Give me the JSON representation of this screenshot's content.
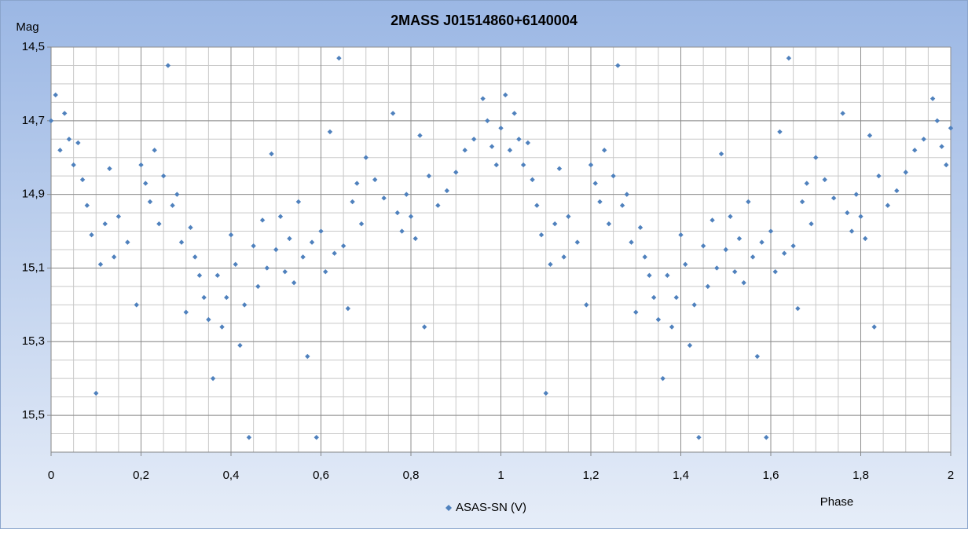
{
  "chart_data": {
    "type": "scatter",
    "title": "2MASS J01514860+6140004",
    "y_label": "Mag",
    "x_label": "Phase",
    "xlim": [
      0,
      2
    ],
    "ylim": [
      15.6,
      14.5
    ],
    "y_reversed": true,
    "grid": true,
    "xticks": [
      0,
      {
        "value": 0.2,
        "label": "0,2"
      },
      {
        "value": 0.4,
        "label": "0,4"
      },
      {
        "value": 0.6,
        "label": "0,6"
      },
      {
        "value": 0.8,
        "label": "0,8"
      },
      1,
      {
        "value": 1.2,
        "label": "1,2"
      },
      {
        "value": 1.4,
        "label": "1,4"
      },
      {
        "value": 1.6,
        "label": "1,6"
      },
      {
        "value": 1.8,
        "label": "1,8"
      },
      2
    ],
    "yticks": [
      {
        "value": 14.5,
        "label": "14,5"
      },
      {
        "value": 14.7,
        "label": "14,7"
      },
      {
        "value": 14.9,
        "label": "14,9"
      },
      {
        "value": 15.1,
        "label": "15,1"
      },
      {
        "value": 15.3,
        "label": "15,3"
      },
      {
        "value": 15.5,
        "label": "15,5"
      }
    ],
    "legend": "bottom",
    "series": [
      {
        "name": "ASAS-SN (V)",
        "color": "#4f81bd",
        "x": [
          0,
          0.01,
          0.02,
          0.03,
          0.04,
          0.05,
          0.06,
          0.07,
          0.08,
          0.09,
          0.1,
          0.11,
          0.12,
          0.13,
          0.14,
          0.15,
          0.17,
          0.19,
          0.2,
          0.21,
          0.22,
          0.23,
          0.24,
          0.25,
          0.26,
          0.27,
          0.28,
          0.29,
          0.3,
          0.31,
          0.32,
          0.33,
          0.34,
          0.35,
          0.36,
          0.37,
          0.38,
          0.39,
          0.4,
          0.41,
          0.42,
          0.43,
          0.44,
          0.45,
          0.46,
          0.47,
          0.48,
          0.49,
          0.5,
          0.51,
          0.52,
          0.53,
          0.54,
          0.55,
          0.56,
          0.57,
          0.58,
          0.59,
          0.6,
          0.61,
          0.62,
          0.63,
          0.64,
          0.65,
          0.66,
          0.67,
          0.68,
          0.69,
          0.7,
          0.72,
          0.74,
          0.76,
          0.77,
          0.78,
          0.79,
          0.8,
          0.81,
          0.82,
          0.83,
          0.84,
          0.86,
          0.88,
          0.9,
          0.92,
          0.94,
          0.96,
          0.97,
          0.98,
          0.99,
          1,
          1.01,
          1.02,
          1.03,
          1.04,
          1.05,
          1.06,
          1.07,
          1.08,
          1.09,
          1.1,
          1.11,
          1.12,
          1.13,
          1.14,
          1.15,
          1.17,
          1.19,
          1.2,
          1.21,
          1.22,
          1.23,
          1.24,
          1.25,
          1.26,
          1.27,
          1.28,
          1.29,
          1.3,
          1.31,
          1.32,
          1.33,
          1.34,
          1.35,
          1.36,
          1.37,
          1.38,
          1.39,
          1.4,
          1.41,
          1.42,
          1.43,
          1.44,
          1.45,
          1.46,
          1.47,
          1.48,
          1.49,
          1.5,
          1.51,
          1.52,
          1.53,
          1.54,
          1.55,
          1.56,
          1.57,
          1.58,
          1.59,
          1.6,
          1.61,
          1.62,
          1.63,
          1.64,
          1.65,
          1.66,
          1.67,
          1.68,
          1.69,
          1.7,
          1.72,
          1.74,
          1.76,
          1.77,
          1.78,
          1.79,
          1.8,
          1.81,
          1.82,
          1.83,
          1.84,
          1.86,
          1.88,
          1.9,
          1.92,
          1.94,
          1.96,
          1.97,
          1.98,
          1.99,
          2
        ],
        "values": [
          14.7,
          14.63,
          14.78,
          14.68,
          14.75,
          14.82,
          14.76,
          14.86,
          14.93,
          15.01,
          15.44,
          15.09,
          14.98,
          14.83,
          15.07,
          14.96,
          15.03,
          15.2,
          14.82,
          14.87,
          14.92,
          14.78,
          14.98,
          14.85,
          14.55,
          14.93,
          14.9,
          15.03,
          15.22,
          14.99,
          15.07,
          15.12,
          15.18,
          15.24,
          15.4,
          15.12,
          15.26,
          15.18,
          15.01,
          15.09,
          15.31,
          15.2,
          15.56,
          15.04,
          15.15,
          14.97,
          15.1,
          14.79,
          15.05,
          14.96,
          15.11,
          15.02,
          15.14,
          14.92,
          15.07,
          15.34,
          15.03,
          15.56,
          15.0,
          15.11,
          14.73,
          15.06,
          14.53,
          15.04,
          15.21,
          14.92,
          14.87,
          14.98,
          14.8,
          14.86,
          14.91,
          14.68,
          14.95,
          15.0,
          14.9,
          14.96,
          15.02,
          14.74,
          15.26,
          14.85,
          14.93,
          14.89,
          14.84,
          14.78,
          14.75,
          14.64,
          14.7,
          14.77,
          14.82,
          14.72,
          14.63,
          14.78,
          14.68,
          14.75,
          14.82,
          14.76,
          14.86,
          14.93,
          15.01,
          15.44,
          15.09,
          14.98,
          14.83,
          15.07,
          14.96,
          15.03,
          15.2,
          14.82,
          14.87,
          14.92,
          14.78,
          14.98,
          14.85,
          14.55,
          14.93,
          14.9,
          15.03,
          15.22,
          14.99,
          15.07,
          15.12,
          15.18,
          15.24,
          15.4,
          15.12,
          15.26,
          15.18,
          15.01,
          15.09,
          15.31,
          15.2,
          15.56,
          15.04,
          15.15,
          14.97,
          15.1,
          14.79,
          15.05,
          14.96,
          15.11,
          15.02,
          15.14,
          14.92,
          15.07,
          15.34,
          15.03,
          15.56,
          15.0,
          15.11,
          14.73,
          15.06,
          14.53,
          15.04,
          15.21,
          14.92,
          14.87,
          14.98,
          14.8,
          14.86,
          14.91,
          14.68,
          14.95,
          15.0,
          14.9,
          14.96,
          15.02,
          14.74,
          15.26,
          14.85,
          14.93,
          14.89,
          14.84,
          14.78,
          14.75,
          14.64,
          14.7,
          14.77,
          14.82,
          14.72
        ]
      }
    ]
  }
}
